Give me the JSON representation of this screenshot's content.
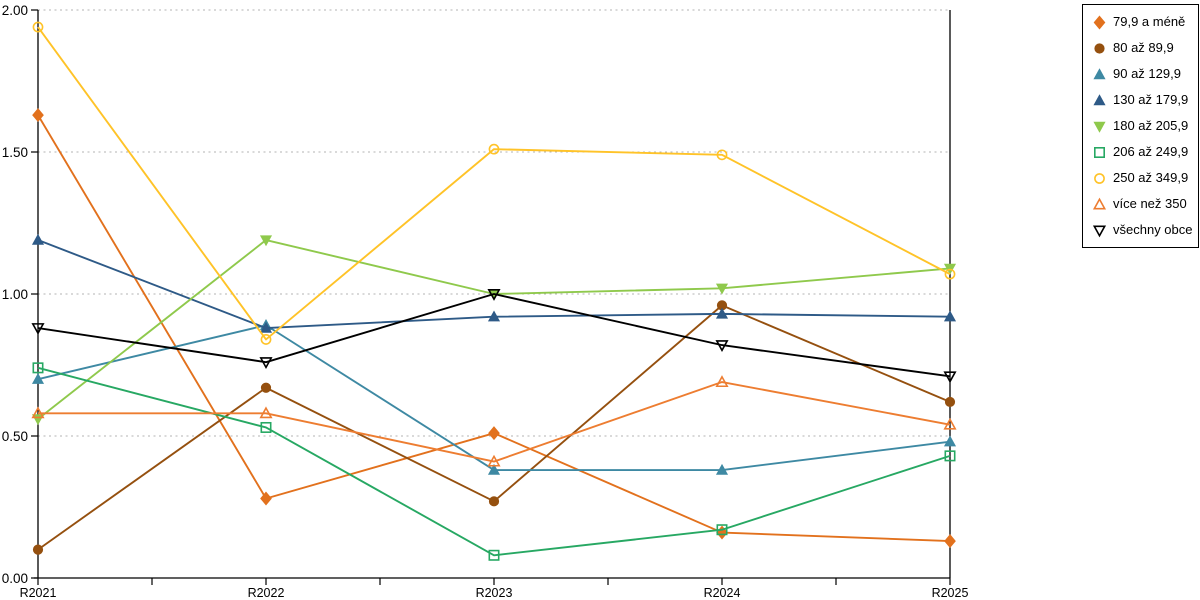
{
  "chart_data": {
    "type": "line",
    "title": "",
    "xlabel": "",
    "ylabel": "",
    "categories": [
      "R2021",
      "R2022",
      "R2023",
      "R2024",
      "R2025"
    ],
    "y_tick_labels": [
      "0.00",
      "0.50",
      "1.00",
      "1.50",
      "2.00"
    ],
    "ylim": [
      0,
      2
    ],
    "y_step": 0.5,
    "grid": "horizontal-dotted",
    "grid_color": "#b3b3b3",
    "axis_color": "#000000",
    "legend_position": "top-right",
    "series": [
      {
        "name": "79,9 a méně",
        "color": "#E2711D",
        "marker": "diamond",
        "fill": "solid",
        "values": [
          1.63,
          0.28,
          0.51,
          0.16,
          0.13
        ]
      },
      {
        "name": "80 až 89,9",
        "color": "#95500F",
        "marker": "circle",
        "fill": "solid",
        "values": [
          0.1,
          0.67,
          0.27,
          0.96,
          0.62
        ]
      },
      {
        "name": "90 až 129,9",
        "color": "#3E89A3",
        "marker": "triangle-up",
        "fill": "solid",
        "values": [
          0.7,
          0.89,
          0.38,
          0.38,
          0.48
        ]
      },
      {
        "name": "130 až 179,9",
        "color": "#2E5A87",
        "marker": "triangle-up",
        "fill": "solid",
        "values": [
          1.19,
          0.88,
          0.92,
          0.93,
          0.92
        ]
      },
      {
        "name": "180 až 205,9",
        "color": "#8FC94C",
        "marker": "triangle-down",
        "fill": "solid",
        "values": [
          0.56,
          1.19,
          1.0,
          1.02,
          1.09
        ]
      },
      {
        "name": "206 až 249,9",
        "color": "#27A863",
        "marker": "square",
        "fill": "hollow",
        "values": [
          0.74,
          0.53,
          0.08,
          0.17,
          0.43
        ]
      },
      {
        "name": "250 až 349,9",
        "color": "#FFC328",
        "marker": "circle",
        "fill": "hollow",
        "values": [
          1.94,
          0.84,
          1.51,
          1.49,
          1.07
        ]
      },
      {
        "name": "více než 350",
        "color": "#ED7D31",
        "marker": "triangle-up",
        "fill": "hollow",
        "values": [
          0.58,
          0.58,
          0.41,
          0.69,
          0.54
        ]
      },
      {
        "name": "všechny obce",
        "color": "#000000",
        "marker": "triangle-down",
        "fill": "hollow",
        "values": [
          0.88,
          0.76,
          1.0,
          0.82,
          0.71
        ]
      }
    ]
  }
}
